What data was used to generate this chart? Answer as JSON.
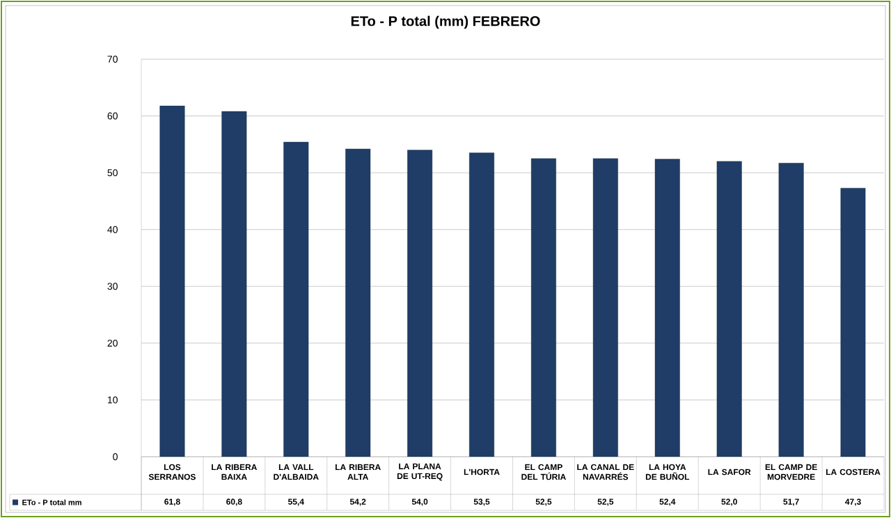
{
  "chart_data": {
    "type": "bar",
    "title": "ETo - P total (mm) FEBRERO",
    "categories": [
      "LOS SERRANOS",
      "LA RIBERA BAIXA",
      "LA VALL D'ALBAIDA",
      "LA RIBERA ALTA",
      "LA PLANA DE UT-REQ",
      "L'HORTA",
      "EL CAMP DEL TÚRIA",
      "LA CANAL DE NAVARRÉS",
      "LA HOYA DE BUÑOL",
      "LA SAFOR",
      "EL CAMP DE MORVEDRE",
      "LA COSTERA"
    ],
    "series": [
      {
        "name": "ETo -   P total mm",
        "color": "#1f3d66",
        "values": [
          61.8,
          60.8,
          55.4,
          54.2,
          54.0,
          53.5,
          52.5,
          52.5,
          52.4,
          52.0,
          51.7,
          47.3
        ],
        "value_labels": [
          "61,8",
          "60,8",
          "55,4",
          "54,2",
          "54,0",
          "53,5",
          "52,5",
          "52,5",
          "52,4",
          "52,0",
          "51,7",
          "47,3"
        ]
      }
    ],
    "ylim": [
      0,
      70
    ],
    "yticks": [
      0,
      10,
      20,
      30,
      40,
      50,
      60,
      70
    ],
    "grid": "y",
    "legend": "bottom left"
  }
}
